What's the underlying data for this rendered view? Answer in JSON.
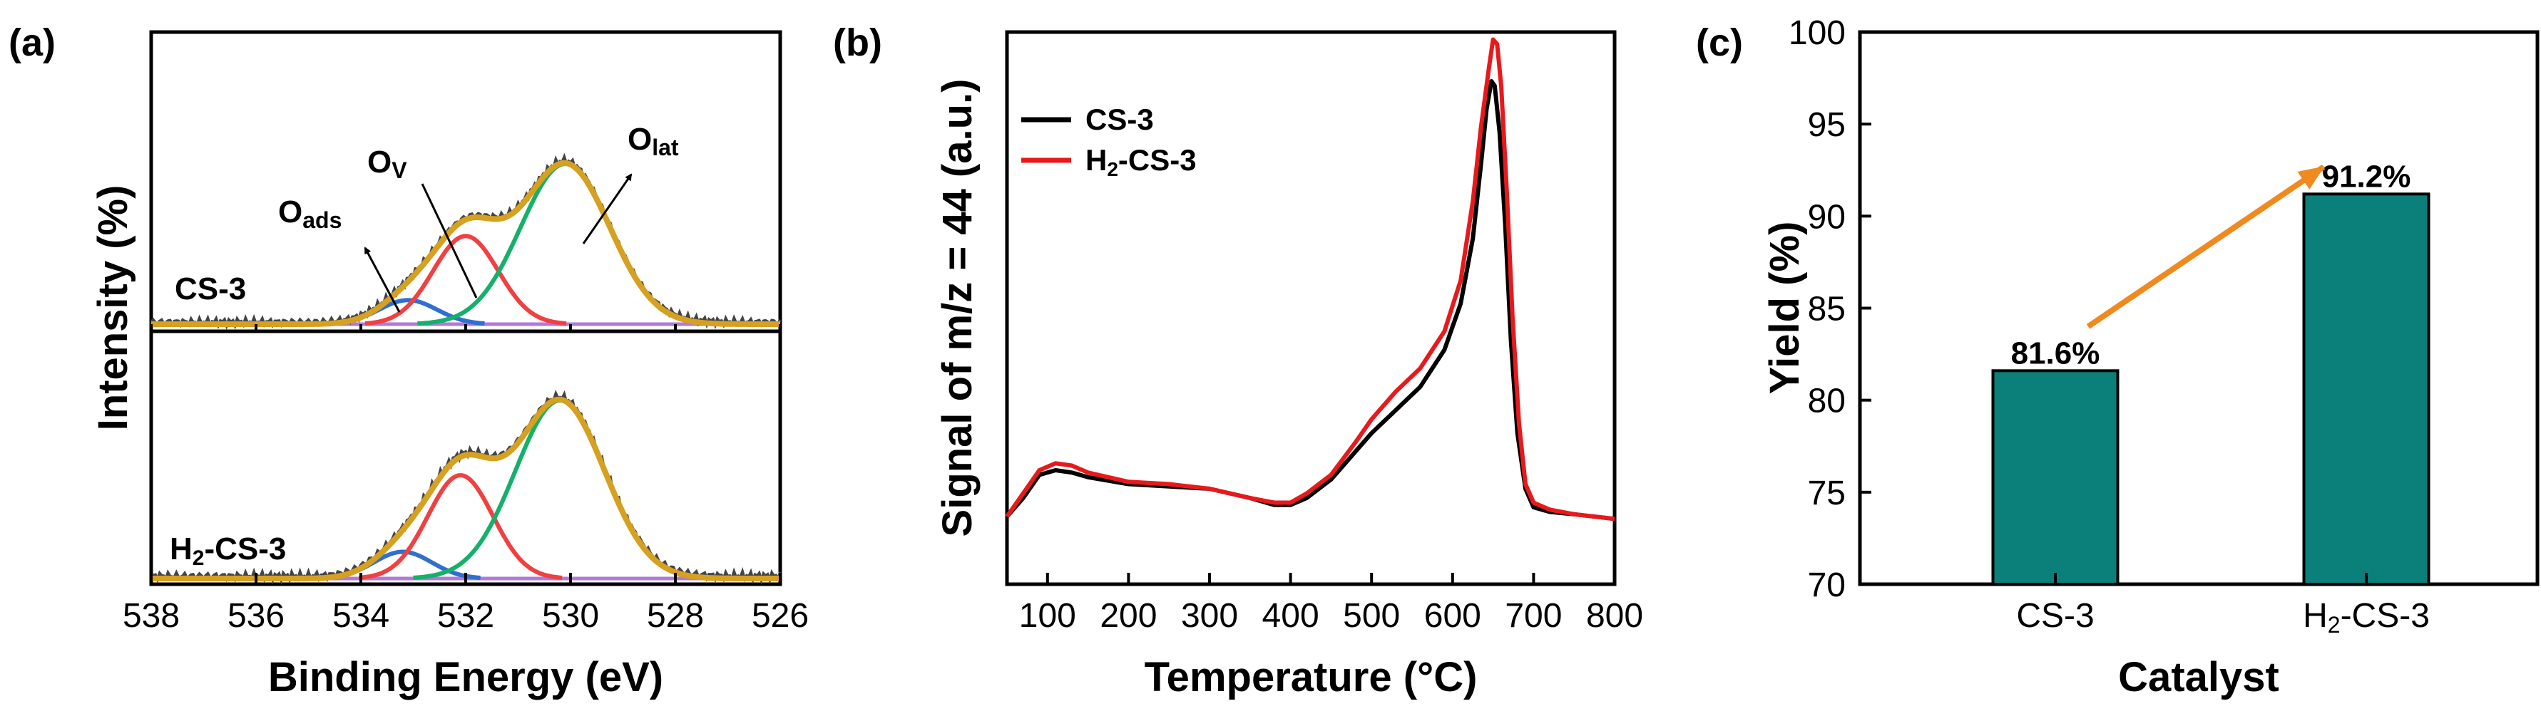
{
  "chart_data": [
    {
      "panel": "(a)",
      "type": "line",
      "xlabel": "Binding Energy (eV)",
      "ylabel": "Intensity (%)",
      "xlim": [
        538,
        526
      ],
      "x_ticks": [
        "538",
        "536",
        "534",
        "532",
        "530",
        "528",
        "526"
      ],
      "subplots": [
        {
          "label": "CS-3",
          "peaks": [
            {
              "name": "O_ads",
              "center": 533.1,
              "height": 0.15,
              "width": 0.55,
              "color": "#2f6fcf"
            },
            {
              "name": "O_v",
              "center": 532.0,
              "height": 0.55,
              "width": 0.62,
              "color": "#f04040"
            },
            {
              "name": "O_lat",
              "center": 530.1,
              "height": 1.0,
              "width": 0.85,
              "color": "#15b06a"
            }
          ],
          "envelope_color": "#d6a020",
          "raw_color": "#444444",
          "baseline_color": "#b27ad8"
        },
        {
          "label": "H2-CS-3",
          "peaks": [
            {
              "name": "O_ads",
              "center": 533.2,
              "height": 0.15,
              "width": 0.55,
              "color": "#2f6fcf"
            },
            {
              "name": "O_v",
              "center": 532.1,
              "height": 0.58,
              "width": 0.62,
              "color": "#f04040"
            },
            {
              "name": "O_lat",
              "center": 530.2,
              "height": 1.0,
              "width": 0.85,
              "color": "#15b06a"
            }
          ],
          "envelope_color": "#d6a020",
          "raw_color": "#444444",
          "baseline_color": "#b27ad8"
        }
      ],
      "annotations": {
        "o_ads": {
          "main": "O",
          "sub": "ads"
        },
        "o_v": {
          "main": "O",
          "sub": "V"
        },
        "o_lat": {
          "main": "O",
          "sub": "lat"
        },
        "sample_top": "CS-3",
        "sample_bottom": {
          "pre": "H",
          "sub": "2",
          "post": "-CS-3"
        }
      }
    },
    {
      "panel": "(b)",
      "type": "line",
      "xlabel": "Temperature (°C)",
      "ylabel": "Signal of m/z = 44 (a.u.)",
      "xlim": [
        50,
        800
      ],
      "x_ticks": [
        "100",
        "200",
        "300",
        "400",
        "500",
        "600",
        "700",
        "800"
      ],
      "series": [
        {
          "name": "CS-3",
          "color": "#000000",
          "x": [
            50,
            70,
            90,
            110,
            130,
            150,
            200,
            250,
            300,
            350,
            380,
            400,
            420,
            450,
            480,
            500,
            530,
            560,
            590,
            610,
            625,
            635,
            642,
            648,
            652,
            658,
            665,
            672,
            680,
            690,
            700,
            720,
            750,
            800
          ],
          "y": [
            0.02,
            0.06,
            0.11,
            0.12,
            0.115,
            0.105,
            0.09,
            0.085,
            0.08,
            0.06,
            0.045,
            0.045,
            0.06,
            0.1,
            0.16,
            0.2,
            0.25,
            0.3,
            0.38,
            0.48,
            0.62,
            0.78,
            0.9,
            0.96,
            0.95,
            0.85,
            0.65,
            0.4,
            0.2,
            0.08,
            0.04,
            0.03,
            0.025,
            0.015
          ]
        },
        {
          "name": "H2-CS-3",
          "color": "#e8191c",
          "x": [
            50,
            70,
            90,
            110,
            130,
            150,
            200,
            250,
            300,
            350,
            380,
            400,
            420,
            450,
            480,
            500,
            530,
            560,
            590,
            610,
            625,
            635,
            645,
            650,
            655,
            660,
            667,
            674,
            682,
            690,
            700,
            720,
            750,
            800
          ],
          "y": [
            0.02,
            0.07,
            0.12,
            0.135,
            0.13,
            0.115,
            0.095,
            0.09,
            0.08,
            0.06,
            0.05,
            0.05,
            0.07,
            0.11,
            0.18,
            0.23,
            0.29,
            0.34,
            0.42,
            0.53,
            0.7,
            0.86,
            0.99,
            1.05,
            1.04,
            0.95,
            0.72,
            0.45,
            0.22,
            0.09,
            0.05,
            0.035,
            0.025,
            0.015
          ]
        }
      ],
      "legend": [
        {
          "text": "CS-3",
          "color": "#000000"
        },
        {
          "text_pre": "H",
          "text_sub": "2",
          "text_post": "-CS-3",
          "color": "#e8191c"
        }
      ]
    },
    {
      "panel": "(c)",
      "type": "bar",
      "xlabel": "Catalyst",
      "ylabel": "Yield (%)",
      "ylim": [
        70,
        100
      ],
      "y_ticks": [
        "70",
        "75",
        "80",
        "85",
        "90",
        "95",
        "100"
      ],
      "categories": [
        {
          "pre": "CS-3",
          "sub": "",
          "post": ""
        },
        {
          "pre": "H",
          "sub": "2",
          "post": "-CS-3"
        }
      ],
      "values": [
        81.6,
        91.2
      ],
      "value_labels": [
        "81.6%",
        "91.2%"
      ],
      "bar_color": "#0b7f7a",
      "arrow_color": "#f08a1e"
    }
  ]
}
